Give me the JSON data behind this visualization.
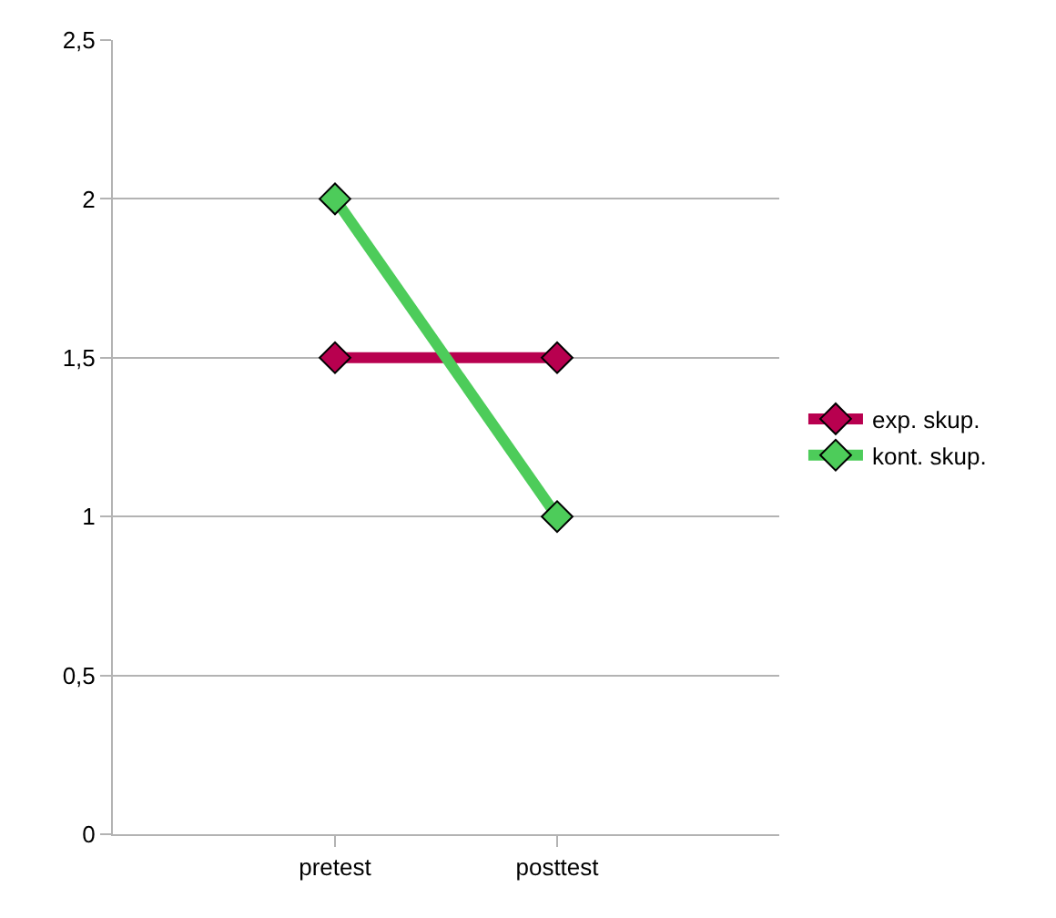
{
  "chart_data": {
    "type": "line",
    "categories": [
      "pretest",
      "posttest"
    ],
    "series": [
      {
        "name": "exp. skup.",
        "color": "#b8004f",
        "values": [
          1.5,
          1.5
        ]
      },
      {
        "name": "kont. skup.",
        "color": "#4dcc5a",
        "values": [
          2,
          1
        ]
      }
    ],
    "ylim": [
      0,
      2.5
    ],
    "yticks": [
      0,
      {
        "value": 0.5,
        "label": "0,5"
      },
      1,
      {
        "value": 1.5,
        "label": "1,5"
      },
      2,
      {
        "value": 2.5,
        "label": "2,5"
      }
    ],
    "grid": "y",
    "legend": "right",
    "marker": "diamond",
    "line_style": "solid"
  }
}
